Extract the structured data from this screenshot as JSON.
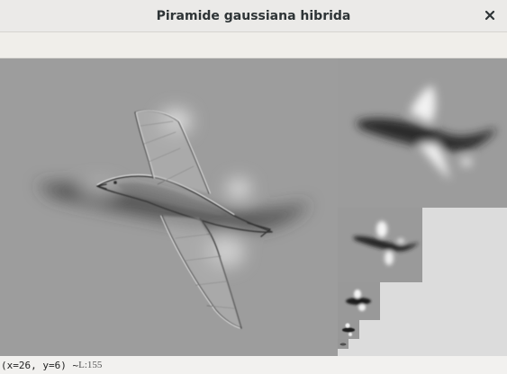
{
  "window": {
    "title": "Piramide gaussiana hibrida",
    "close_icon": "close-icon"
  },
  "status": {
    "coords": "(x=26, y=6) ~ ",
    "value": "L:155"
  },
  "colors": {
    "canvas_background": "#dcdcdc",
    "level_gray": "#9b9b9b"
  }
}
